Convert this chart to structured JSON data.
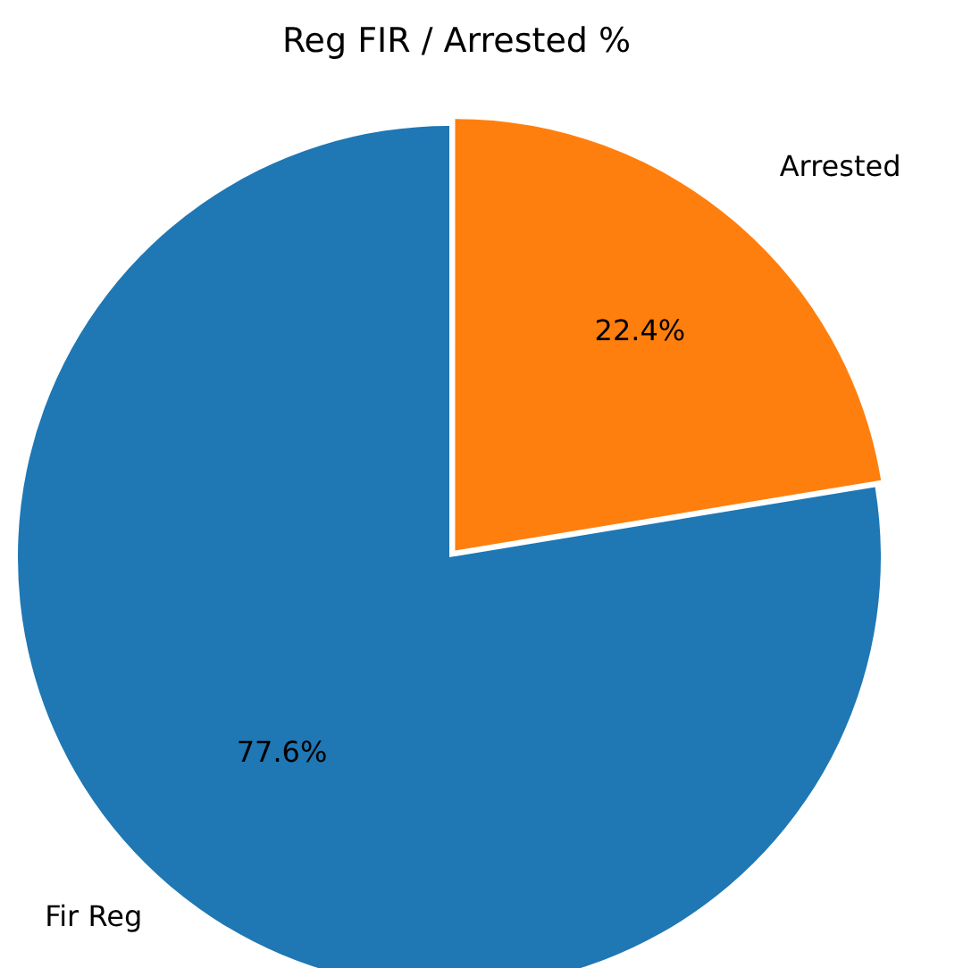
{
  "chart_data": {
    "type": "pie",
    "title": "Reg FIR / Arrested %",
    "categories": [
      "Fir Reg",
      "Arrested"
    ],
    "values": [
      77.6,
      22.4
    ],
    "colors": [
      "#1f77b4",
      "#ff7f0e"
    ],
    "value_labels": [
      "77.6%",
      "22.4%"
    ],
    "legend": false
  }
}
